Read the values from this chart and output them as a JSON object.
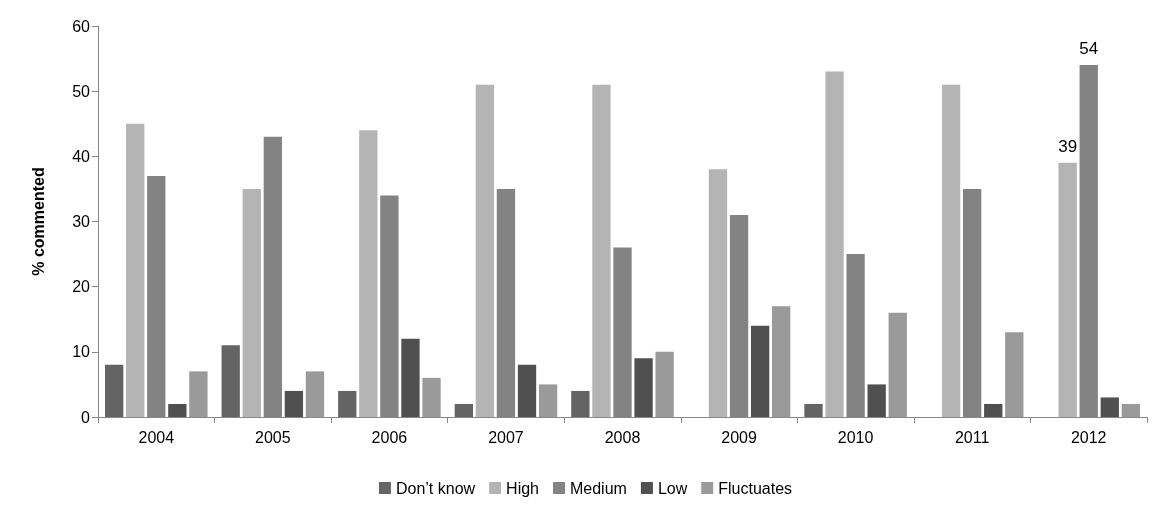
{
  "chart_data": {
    "type": "bar",
    "ylabel": "% commented",
    "categories": [
      "2004",
      "2005",
      "2006",
      "2007",
      "2008",
      "2009",
      "2010",
      "2011",
      "2012"
    ],
    "series": [
      {
        "name": "Don’t know",
        "color": "#646464",
        "values": [
          8,
          11,
          4,
          2,
          4,
          0,
          2,
          0,
          0
        ]
      },
      {
        "name": "High",
        "color": "#b4b4b4",
        "values": [
          45,
          35,
          44,
          51,
          51,
          38,
          53,
          51,
          39
        ],
        "value_labels": [
          null,
          null,
          null,
          null,
          null,
          null,
          null,
          null,
          "39"
        ]
      },
      {
        "name": "Medium",
        "color": "#838383",
        "values": [
          37,
          43,
          34,
          35,
          26,
          31,
          25,
          35,
          54
        ],
        "value_labels": [
          null,
          null,
          null,
          null,
          null,
          null,
          null,
          null,
          "54"
        ]
      },
      {
        "name": "Low",
        "color": "#505050",
        "values": [
          2,
          4,
          12,
          8,
          9,
          14,
          5,
          2,
          3
        ]
      },
      {
        "name": "Fluctuates",
        "color": "#9a9a9a",
        "values": [
          7,
          7,
          6,
          5,
          10,
          17,
          16,
          13,
          2
        ]
      }
    ],
    "ylim": [
      0,
      60
    ],
    "yticks": [
      0,
      10,
      20,
      30,
      40,
      50,
      60
    ],
    "grid": false,
    "legend": "bottom"
  }
}
